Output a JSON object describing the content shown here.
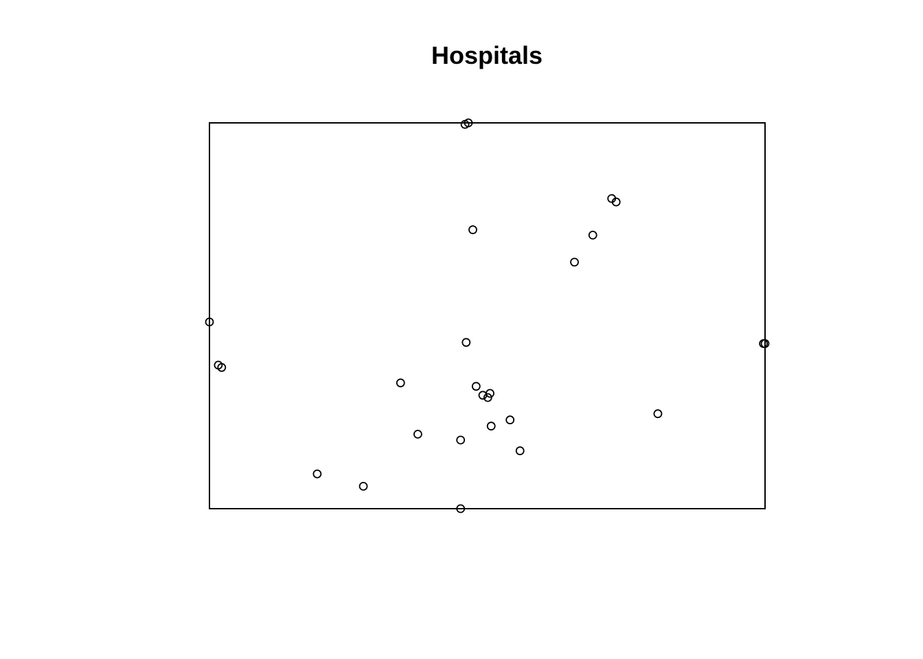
{
  "chart_data": {
    "type": "scatter",
    "title": "Hospitals",
    "xlabel": "",
    "ylabel": "",
    "xlim": [
      0,
      1
    ],
    "ylim": [
      0,
      1
    ],
    "axes_shown": false,
    "box": true,
    "grid": false,
    "legend": "none",
    "point_style": "open-circle",
    "colors": {
      "background": "#ffffff",
      "frame": "#000000",
      "points": "#000000"
    },
    "points": [
      {
        "x": 0.46,
        "y": 0.996
      },
      {
        "x": 0.466,
        "y": 1.0
      },
      {
        "x": 0.474,
        "y": 0.723
      },
      {
        "x": 0.724,
        "y": 0.804
      },
      {
        "x": 0.732,
        "y": 0.795
      },
      {
        "x": 0.69,
        "y": 0.709
      },
      {
        "x": 0.657,
        "y": 0.639
      },
      {
        "x": 0.0,
        "y": 0.484
      },
      {
        "x": 0.462,
        "y": 0.431
      },
      {
        "x": 0.997,
        "y": 0.428
      },
      {
        "x": 1.0,
        "y": 0.428
      },
      {
        "x": 0.016,
        "y": 0.372
      },
      {
        "x": 0.022,
        "y": 0.366
      },
      {
        "x": 0.344,
        "y": 0.326
      },
      {
        "x": 0.48,
        "y": 0.317
      },
      {
        "x": 0.505,
        "y": 0.299
      },
      {
        "x": 0.492,
        "y": 0.294
      },
      {
        "x": 0.501,
        "y": 0.288
      },
      {
        "x": 0.807,
        "y": 0.246
      },
      {
        "x": 0.541,
        "y": 0.23
      },
      {
        "x": 0.507,
        "y": 0.214
      },
      {
        "x": 0.375,
        "y": 0.193
      },
      {
        "x": 0.452,
        "y": 0.178
      },
      {
        "x": 0.559,
        "y": 0.15
      },
      {
        "x": 0.194,
        "y": 0.09
      },
      {
        "x": 0.277,
        "y": 0.058
      },
      {
        "x": 0.452,
        "y": 0.0
      }
    ]
  }
}
